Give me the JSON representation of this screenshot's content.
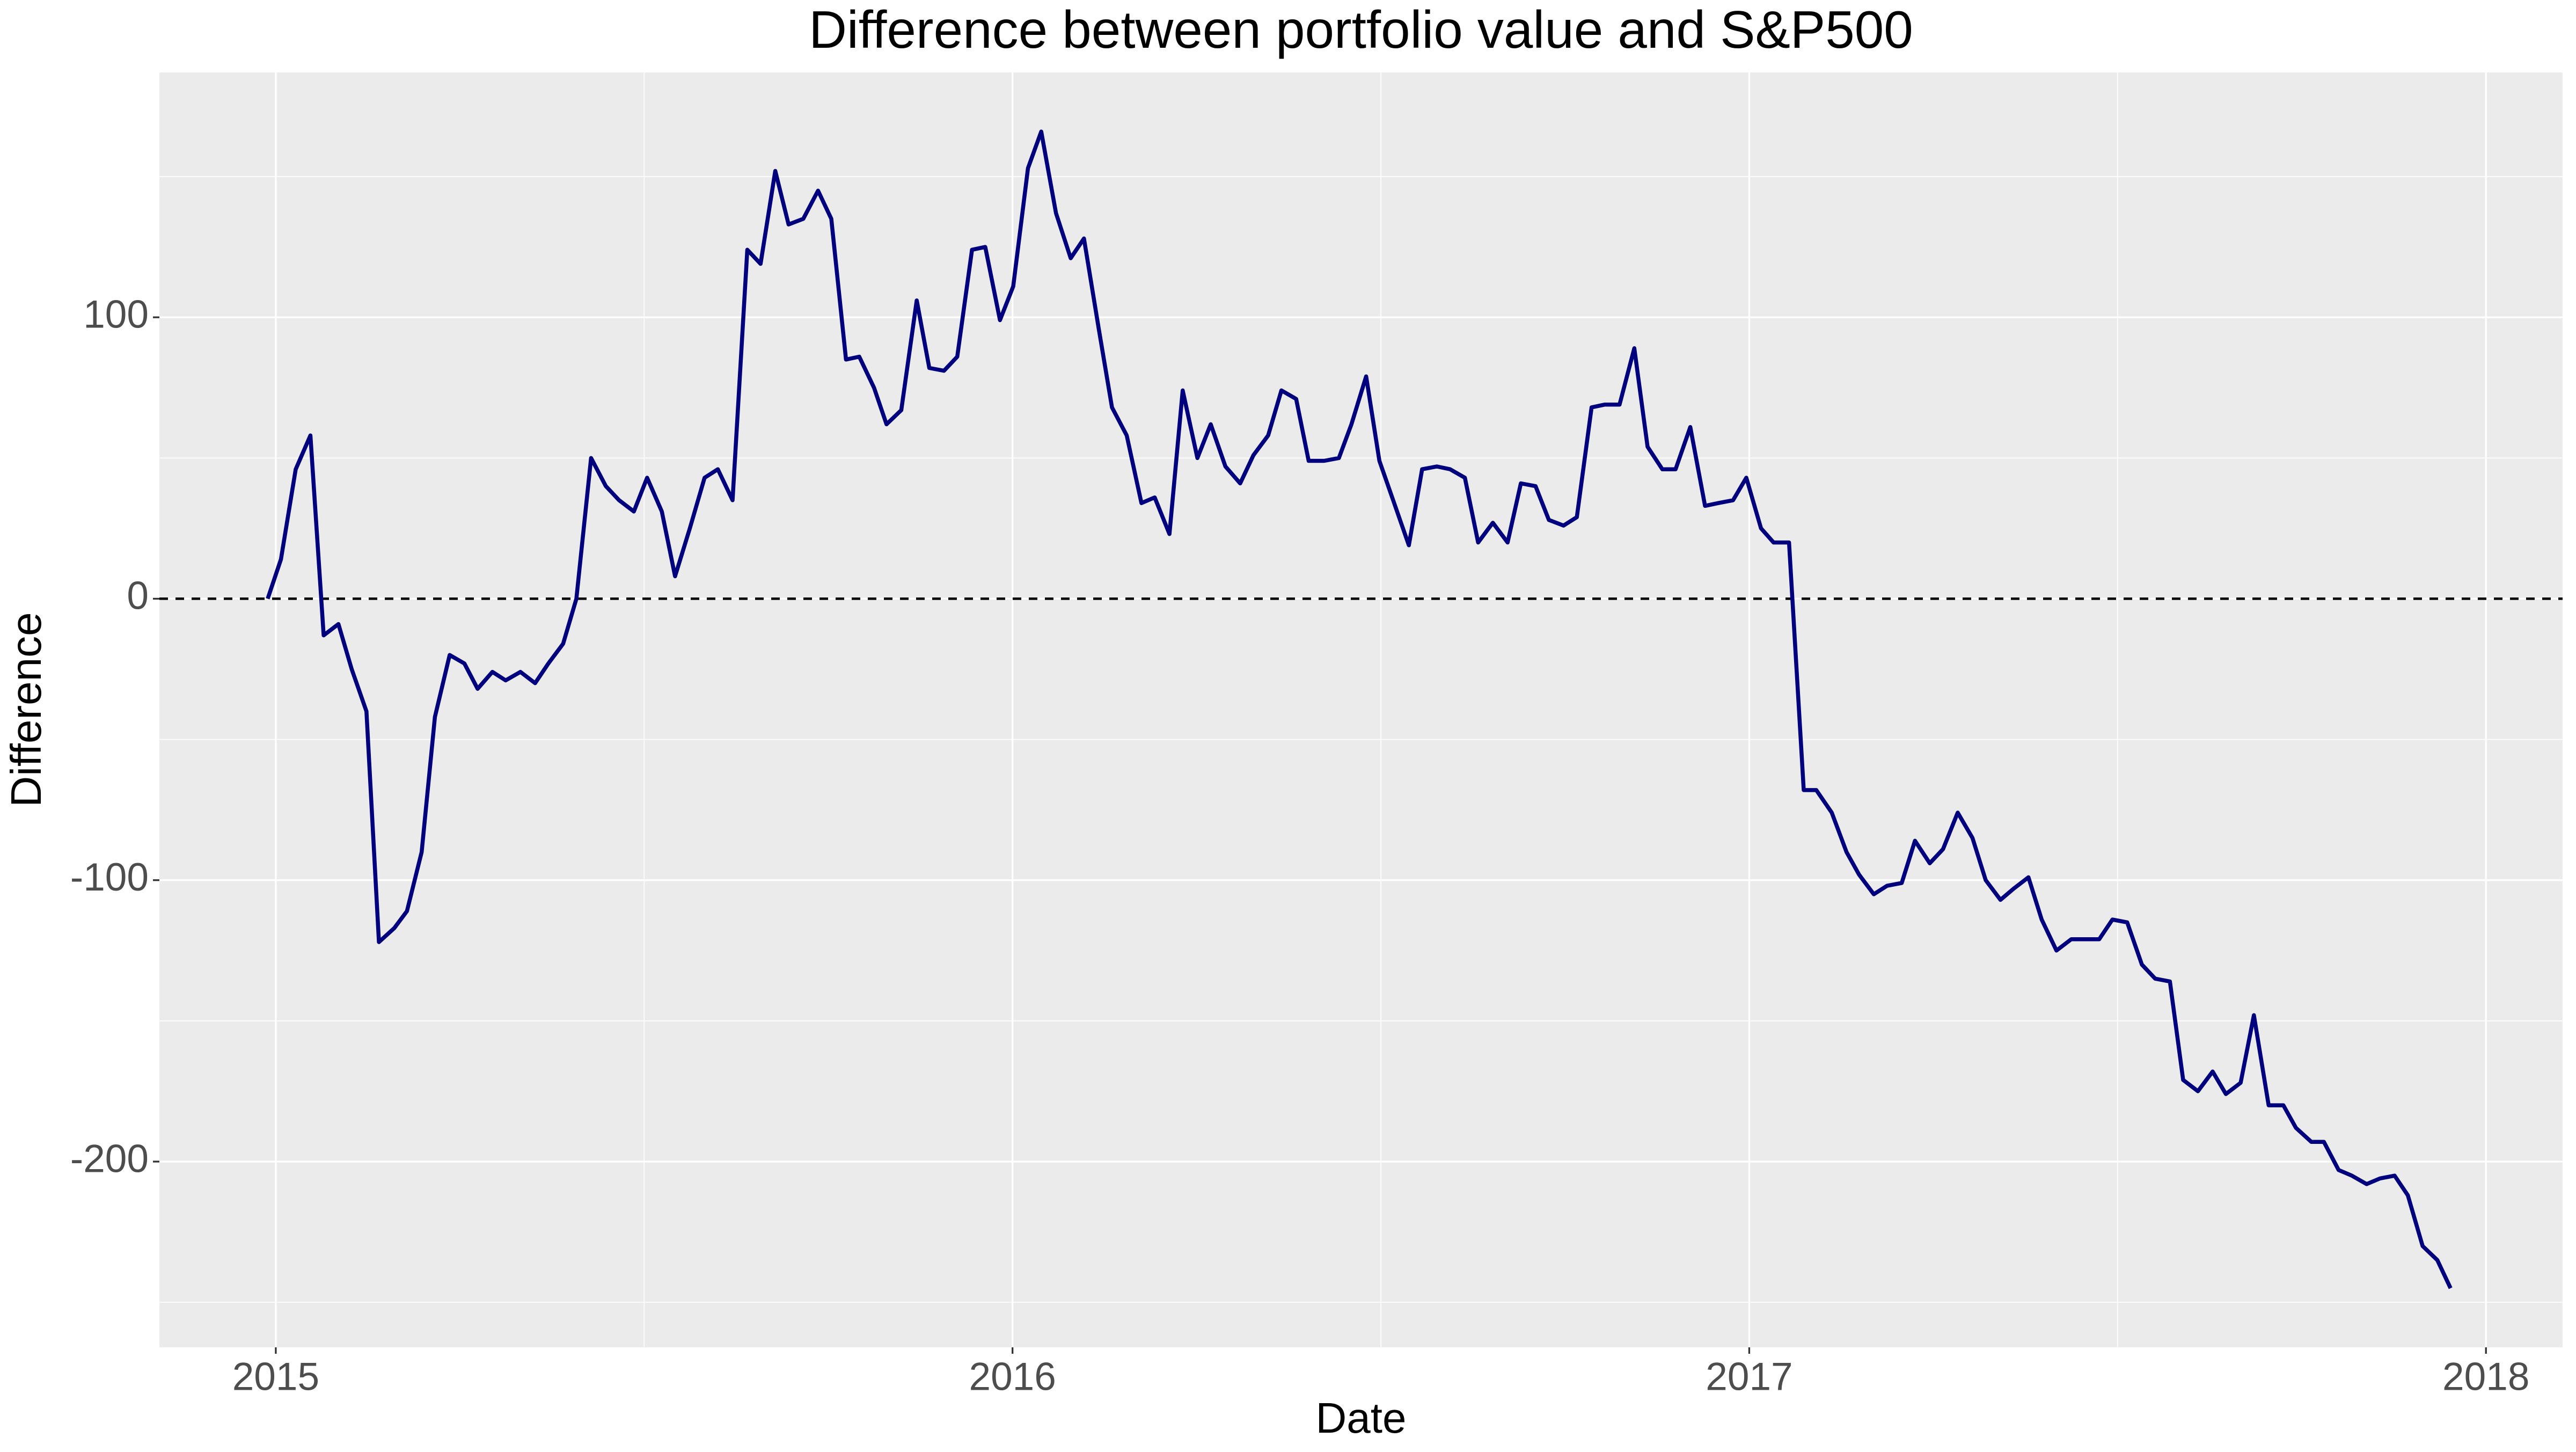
{
  "chart_data": {
    "type": "line",
    "title": "Difference between portfolio value and S&P500",
    "x_label": "Date",
    "y_label": "Difference",
    "x": [
      2014.989,
      2015.007,
      2015.027,
      2015.047,
      2015.065,
      2015.085,
      2015.103,
      2015.123,
      2015.14,
      2015.161,
      2015.178,
      2015.198,
      2015.216,
      2015.236,
      2015.256,
      2015.274,
      2015.294,
      2015.312,
      2015.332,
      2015.352,
      2015.37,
      2015.39,
      2015.408,
      2015.428,
      2015.448,
      2015.466,
      2015.486,
      2015.504,
      2015.524,
      2015.542,
      2015.562,
      2015.582,
      2015.6,
      2015.62,
      2015.64,
      2015.658,
      2015.678,
      2015.696,
      2015.716,
      2015.736,
      2015.754,
      2015.774,
      2015.792,
      2015.812,
      2015.829,
      2015.849,
      2015.87,
      2015.887,
      2015.907,
      2015.925,
      2015.945,
      2015.963,
      2015.983,
      2016.001,
      2016.021,
      2016.039,
      2016.059,
      2016.079,
      2016.097,
      2016.117,
      2016.135,
      2016.155,
      2016.175,
      2016.193,
      2016.213,
      2016.231,
      2016.251,
      2016.269,
      2016.289,
      2016.309,
      2016.327,
      2016.347,
      2016.365,
      2016.385,
      2016.402,
      2016.423,
      2016.443,
      2016.46,
      2016.48,
      2016.498,
      2016.518,
      2016.538,
      2016.556,
      2016.576,
      2016.594,
      2016.614,
      2016.632,
      2016.652,
      2016.672,
      2016.69,
      2016.71,
      2016.728,
      2016.748,
      2016.766,
      2016.786,
      2016.804,
      2016.824,
      2016.844,
      2016.862,
      2016.882,
      2016.9,
      2016.92,
      2016.94,
      2016.958,
      2016.978,
      2016.996,
      2017.016,
      2017.033,
      2017.054,
      2017.074,
      2017.091,
      2017.112,
      2017.132,
      2017.149,
      2017.169,
      2017.187,
      2017.207,
      2017.225,
      2017.245,
      2017.263,
      2017.283,
      2017.303,
      2017.321,
      2017.341,
      2017.359,
      2017.379,
      2017.397,
      2017.417,
      2017.437,
      2017.455,
      2017.475,
      2017.493,
      2017.513,
      2017.533,
      2017.551,
      2017.571,
      2017.589,
      2017.609,
      2017.629,
      2017.647,
      2017.667,
      2017.685,
      2017.705,
      2017.725,
      2017.742,
      2017.763,
      2017.78,
      2017.8,
      2017.818,
      2017.838,
      2017.856,
      2017.876,
      2017.894,
      2017.914,
      2017.934,
      2017.952
    ],
    "values": [
      0,
      14,
      46,
      58,
      -13,
      -9,
      -25,
      -40,
      -122,
      -117,
      -111,
      -90,
      -42,
      -20,
      -23,
      -32,
      -26,
      -29,
      -26,
      -30,
      -23,
      -16,
      0,
      50,
      40,
      35,
      31,
      43,
      31,
      8,
      25,
      43,
      46,
      35,
      124,
      119,
      152,
      133,
      135,
      145,
      135,
      85,
      86,
      75,
      62,
      67,
      106,
      82,
      81,
      86,
      124,
      125,
      99,
      111,
      153,
      166,
      137,
      121,
      128,
      96,
      68,
      58,
      34,
      36,
      23,
      74,
      50,
      62,
      47,
      41,
      51,
      58,
      74,
      71,
      49,
      49,
      50,
      62,
      79,
      49,
      34,
      19,
      46,
      47,
      46,
      43,
      20,
      27,
      20,
      41,
      40,
      28,
      26,
      29,
      68,
      69,
      69,
      89,
      54,
      46,
      46,
      61,
      33,
      34,
      35,
      43,
      25,
      20,
      20,
      -68,
      -68,
      -76,
      -90,
      -98,
      -105,
      -102,
      -101,
      -86,
      -94,
      -89,
      -76,
      -85,
      -100,
      -107,
      -103,
      -99,
      -114,
      -125,
      -121,
      -121,
      -121,
      -114,
      -115,
      -130,
      -135,
      -136,
      -171,
      -175,
      -168,
      -176,
      -172,
      -148,
      -180,
      -180,
      -188,
      -193,
      -193,
      -203,
      -205,
      -208,
      -206,
      -205,
      -212,
      -230,
      -235,
      -245
    ],
    "color": "#00007f",
    "xlim": [
      2014.842,
      2018.104
    ],
    "xticks": [
      2015,
      2016,
      2017,
      2018
    ],
    "minor_xticks": [
      2015.5,
      2016.5,
      2017.5
    ],
    "ylim": [
      -266,
      187
    ],
    "yticks": [
      -200,
      -100,
      0,
      100
    ],
    "minor_yticks": [
      -250,
      -150,
      -50,
      50,
      150
    ],
    "hline": 0,
    "grid": true
  }
}
